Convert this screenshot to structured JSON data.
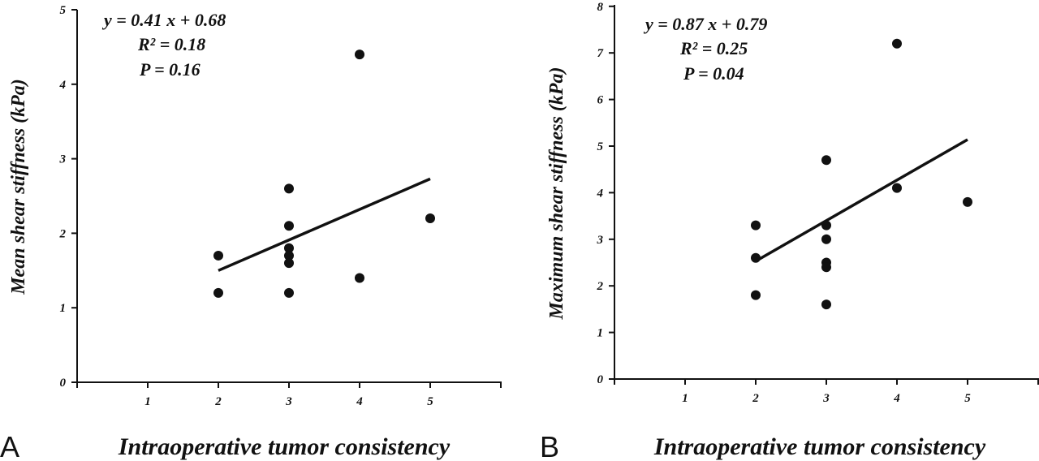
{
  "chart_data": [
    {
      "type": "scatter",
      "panel_label": "A",
      "xlabel": "Intraoperative tumor consistency",
      "ylabel": "Mean shear stiffness (kPa)",
      "xlim": [
        0,
        6
      ],
      "ylim": [
        0,
        5
      ],
      "x_ticks": [
        1,
        2,
        3,
        4,
        5
      ],
      "y_ticks": [
        0,
        1,
        2,
        3,
        4,
        5
      ],
      "grid": false,
      "points": [
        {
          "x": 2,
          "y": 1.7
        },
        {
          "x": 2,
          "y": 1.2
        },
        {
          "x": 3,
          "y": 2.6
        },
        {
          "x": 3,
          "y": 2.1
        },
        {
          "x": 3,
          "y": 1.8
        },
        {
          "x": 3,
          "y": 1.7
        },
        {
          "x": 3,
          "y": 1.6
        },
        {
          "x": 3,
          "y": 1.2
        },
        {
          "x": 4,
          "y": 4.4
        },
        {
          "x": 4,
          "y": 1.4
        },
        {
          "x": 5,
          "y": 2.2
        }
      ],
      "fit": {
        "slope": 0.41,
        "intercept": 0.68,
        "x_range": [
          2,
          5
        ]
      },
      "annotations": [
        "y = 0.41 x + 0.68",
        "R² = 0.18",
        "P =  0.16"
      ]
    },
    {
      "type": "scatter",
      "panel_label": "B",
      "xlabel": "Intraoperative tumor consistency",
      "ylabel": "Maximum shear stiffness (kPa)",
      "xlim": [
        0,
        6
      ],
      "ylim": [
        0,
        8
      ],
      "x_ticks": [
        1,
        2,
        3,
        4,
        5
      ],
      "y_ticks": [
        0,
        1,
        2,
        3,
        4,
        5,
        6,
        7,
        8
      ],
      "grid": false,
      "points": [
        {
          "x": 2,
          "y": 3.3
        },
        {
          "x": 2,
          "y": 2.6
        },
        {
          "x": 2,
          "y": 1.8
        },
        {
          "x": 3,
          "y": 4.7
        },
        {
          "x": 3,
          "y": 3.3
        },
        {
          "x": 3,
          "y": 3.0
        },
        {
          "x": 3,
          "y": 2.5
        },
        {
          "x": 3,
          "y": 2.4
        },
        {
          "x": 3,
          "y": 1.6
        },
        {
          "x": 4,
          "y": 7.2
        },
        {
          "x": 4,
          "y": 4.1
        },
        {
          "x": 5,
          "y": 3.8
        }
      ],
      "fit": {
        "slope": 0.87,
        "intercept": 0.79,
        "x_range": [
          2,
          5
        ]
      },
      "annotations": [
        "y = 0.87 x + 0.79",
        "R² = 0.25",
        "P = 0.04"
      ]
    }
  ]
}
